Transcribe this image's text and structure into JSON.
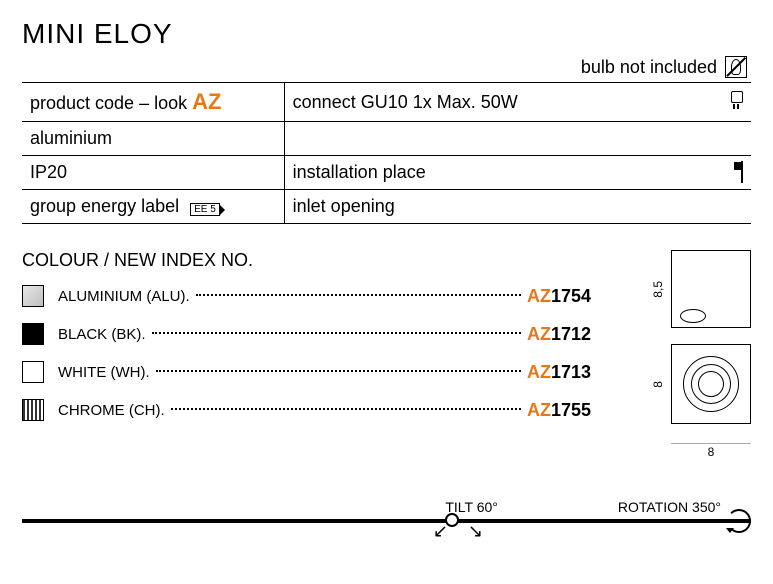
{
  "title": "MINI ELOY",
  "note": "bulb not included",
  "specs": {
    "row1": {
      "left_a": "product code – look ",
      "left_b": "AZ",
      "right": "connect GU10 1x Max. 50W"
    },
    "row2": {
      "left": "aluminium"
    },
    "row3": {
      "left": "IP20",
      "right": "installation place"
    },
    "row4": {
      "left": "group energy label",
      "badge": "EE 5",
      "right": "inlet opening"
    }
  },
  "colour_title": "COLOUR / NEW INDEX NO.",
  "colours": [
    {
      "name": "ALUMINIUM (ALU)",
      "swatch": "sw-alu",
      "prefix": "AZ",
      "num": "1754"
    },
    {
      "name": "BLACK (BK)",
      "swatch": "sw-black",
      "prefix": "AZ",
      "num": "1712"
    },
    {
      "name": "WHITE (WH)",
      "swatch": "sw-white",
      "prefix": "AZ",
      "num": "1713"
    },
    {
      "name": "CHROME (CH)",
      "swatch": "sw-chrome",
      "prefix": "AZ",
      "num": "1755"
    }
  ],
  "dimensions": {
    "h1": "8,5",
    "h2": "8",
    "w": "8"
  },
  "bottom": {
    "tilt": "TILT 60°",
    "rotation": "ROTATION 350°"
  }
}
